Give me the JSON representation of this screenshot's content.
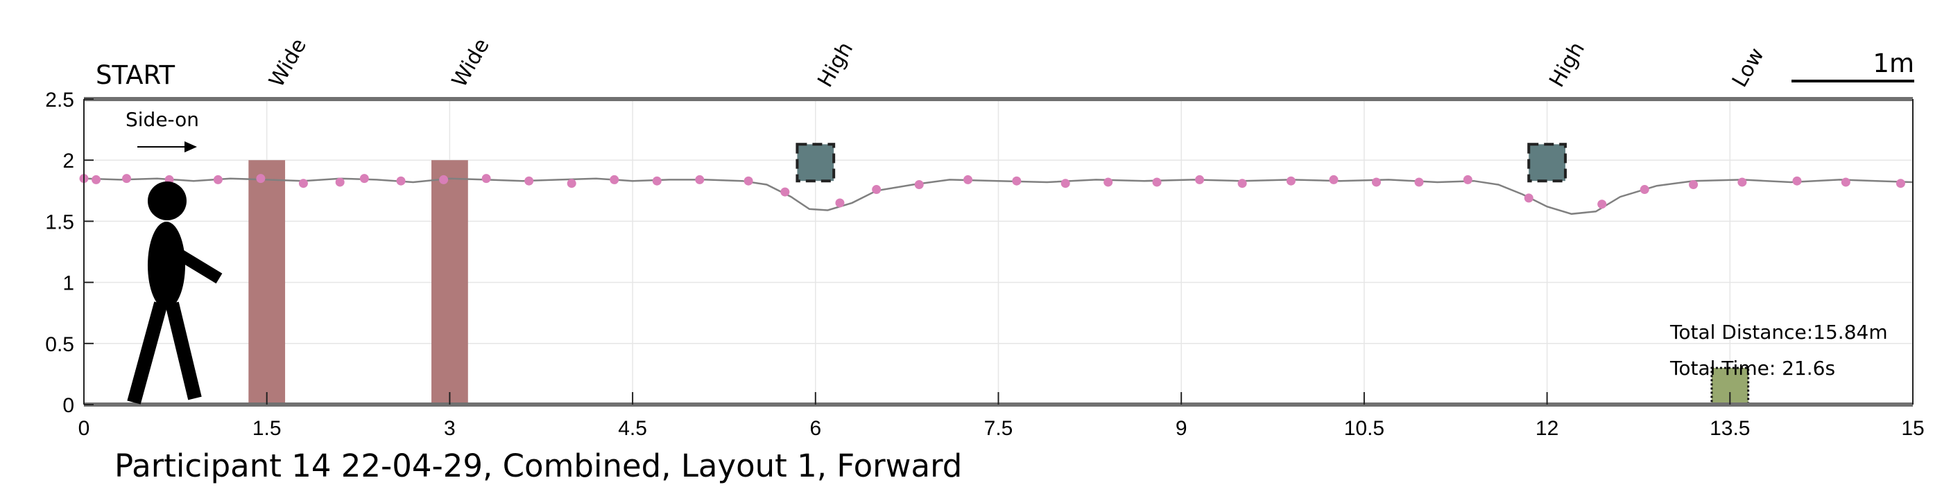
{
  "chart_data": {
    "type": "line",
    "title": "Participant 14 22-04-29, Combined, Layout 1, Forward",
    "start_label": "START",
    "direction_label": "Side-on",
    "scale_label": "1m",
    "xlim": [
      0,
      15
    ],
    "ylim": [
      0,
      2.5
    ],
    "x_ticks": [
      0,
      1.5,
      3,
      4.5,
      6,
      7.5,
      9,
      10.5,
      12,
      13.5,
      15
    ],
    "y_ticks": [
      0,
      0.5,
      1,
      1.5,
      2,
      2.5
    ],
    "grid": true,
    "obstacles": [
      {
        "label": "Wide",
        "x": 1.5,
        "kind": "wide",
        "color": "#b07a7a",
        "x_range": [
          1.35,
          1.65
        ],
        "y_range": [
          0,
          2
        ]
      },
      {
        "label": "Wide",
        "x": 3.0,
        "kind": "wide",
        "color": "#b07a7a",
        "x_range": [
          2.85,
          3.15
        ],
        "y_range": [
          0,
          2
        ]
      },
      {
        "label": "High",
        "x": 6.0,
        "kind": "high",
        "color": "#5f7d80",
        "x_range": [
          5.85,
          6.15
        ],
        "y_range": [
          1.83,
          2.13
        ]
      },
      {
        "label": "High",
        "x": 12.0,
        "kind": "high",
        "color": "#5f7d80",
        "x_range": [
          11.85,
          12.15
        ],
        "y_range": [
          1.83,
          2.13
        ]
      },
      {
        "label": "Low",
        "x": 13.5,
        "kind": "low",
        "color": "#97a86e",
        "x_range": [
          13.35,
          13.65
        ],
        "y_range": [
          0,
          0.3
        ]
      }
    ],
    "series": [
      {
        "color": "#808080",
        "x": [
          0,
          0.3,
          0.6,
          0.9,
          1.2,
          1.5,
          1.8,
          2.1,
          2.4,
          2.7,
          3.0,
          3.3,
          3.6,
          3.9,
          4.2,
          4.5,
          4.8,
          5.1,
          5.4,
          5.6,
          5.8,
          5.95,
          6.1,
          6.3,
          6.5,
          6.8,
          7.1,
          7.5,
          7.9,
          8.3,
          8.7,
          9.1,
          9.5,
          9.9,
          10.3,
          10.7,
          11.1,
          11.4,
          11.6,
          11.8,
          12.0,
          12.2,
          12.4,
          12.6,
          12.9,
          13.2,
          13.6,
          14.0,
          14.4,
          14.7,
          15.0
        ],
        "y": [
          1.85,
          1.84,
          1.85,
          1.83,
          1.85,
          1.84,
          1.83,
          1.85,
          1.84,
          1.82,
          1.85,
          1.84,
          1.83,
          1.84,
          1.85,
          1.83,
          1.84,
          1.84,
          1.83,
          1.8,
          1.7,
          1.6,
          1.59,
          1.65,
          1.75,
          1.8,
          1.84,
          1.83,
          1.82,
          1.84,
          1.83,
          1.84,
          1.83,
          1.84,
          1.83,
          1.84,
          1.82,
          1.83,
          1.8,
          1.72,
          1.62,
          1.56,
          1.58,
          1.7,
          1.79,
          1.83,
          1.84,
          1.82,
          1.84,
          1.83,
          1.82
        ]
      }
    ],
    "markers": {
      "color": "#d97fb8",
      "x": [
        0,
        0.1,
        0.35,
        0.7,
        1.1,
        1.45,
        1.8,
        2.1,
        2.3,
        2.6,
        2.95,
        3.3,
        3.65,
        4.0,
        4.35,
        4.7,
        5.05,
        5.45,
        5.75,
        6.2,
        6.5,
        6.85,
        7.25,
        7.65,
        8.05,
        8.4,
        8.8,
        9.15,
        9.5,
        9.9,
        10.25,
        10.6,
        10.95,
        11.35,
        11.85,
        12.45,
        12.8,
        13.2,
        13.6,
        14.05,
        14.45,
        14.9
      ],
      "y": [
        1.85,
        1.84,
        1.85,
        1.84,
        1.84,
        1.85,
        1.81,
        1.82,
        1.85,
        1.83,
        1.84,
        1.85,
        1.83,
        1.81,
        1.84,
        1.83,
        1.84,
        1.83,
        1.74,
        1.65,
        1.76,
        1.8,
        1.84,
        1.83,
        1.81,
        1.82,
        1.82,
        1.84,
        1.81,
        1.83,
        1.84,
        1.82,
        1.82,
        1.84,
        1.69,
        1.64,
        1.76,
        1.8,
        1.82,
        1.83,
        1.82,
        1.81
      ]
    },
    "annotations": {
      "total_distance": "Total Distance:15.84m",
      "total_time": "Total Time: 21.6s"
    }
  }
}
